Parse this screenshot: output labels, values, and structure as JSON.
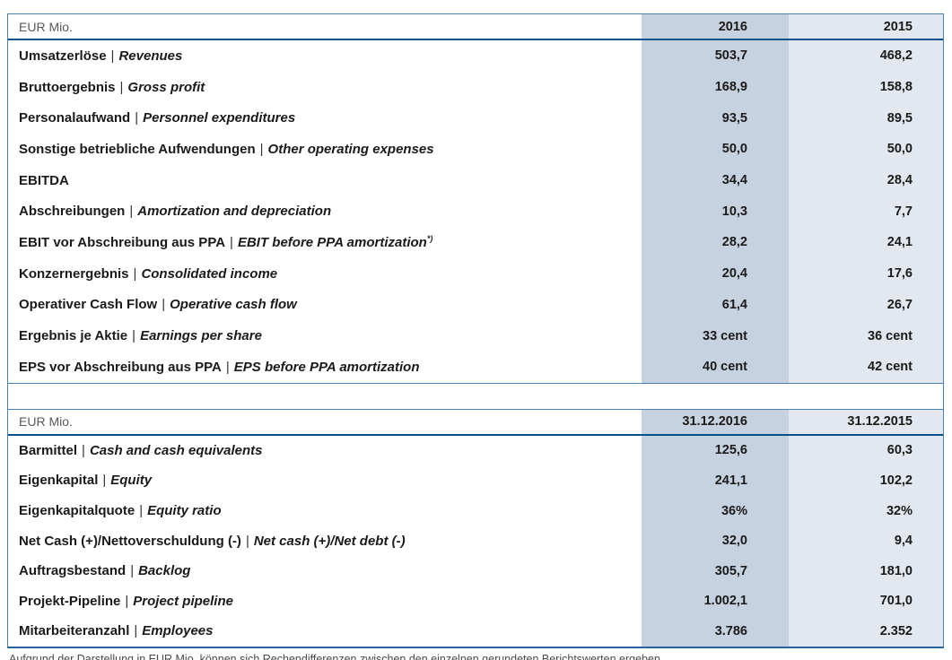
{
  "colors": {
    "frame_border": "#4a81ad",
    "header_rule": "#01518c",
    "bottom_border": "#26639c",
    "col_2016_bg": "#c7d2e0",
    "col_2015_bg": "#e3e7ef"
  },
  "table1": {
    "unit_label": "EUR Mio.",
    "col1_header": "2016",
    "col2_header": "2015",
    "separator": "|",
    "rows": [
      {
        "de": "Umsatzerlöse",
        "en": "Revenues",
        "v2016": "503,7",
        "v2015": "468,2"
      },
      {
        "de": "Bruttoergebnis",
        "en": "Gross profit",
        "v2016": "168,9",
        "v2015": "158,8"
      },
      {
        "de": "Personalaufwand",
        "en": "Personnel expenditures",
        "v2016": "93,5",
        "v2015": "89,5"
      },
      {
        "de": "Sonstige betriebliche Aufwendungen",
        "en": "Other operating expenses",
        "v2016": "50,0",
        "v2015": "50,0"
      },
      {
        "de": "EBITDA",
        "en": "",
        "v2016": "34,4",
        "v2015": "28,4"
      },
      {
        "de": "Abschreibungen",
        "en": "Amortization and depreciation",
        "v2016": "10,3",
        "v2015": "7,7"
      },
      {
        "de": "EBIT vor Abschreibung aus PPA",
        "en": "EBIT before PPA amortization",
        "sup": "*)",
        "v2016": "28,2",
        "v2015": "24,1"
      },
      {
        "de": "Konzernergebnis",
        "en": "Consolidated income",
        "v2016": "20,4",
        "v2015": "17,6"
      },
      {
        "de": "Operativer Cash Flow",
        "en": "Operative cash flow",
        "v2016": "61,4",
        "v2015": "26,7"
      },
      {
        "de": "Ergebnis je Aktie",
        "en": "Earnings per share",
        "v2016": "33 cent",
        "v2015": "36 cent"
      },
      {
        "de": "EPS vor Abschreibung aus PPA",
        "en": "EPS before PPA amortization",
        "v2016": "40 cent",
        "v2015": "42 cent"
      }
    ]
  },
  "table2": {
    "unit_label": "EUR Mio.",
    "col1_header": "31.12.2016",
    "col2_header": "31.12.2015",
    "separator": "|",
    "rows": [
      {
        "de": "Barmittel",
        "en": "Cash and cash equivalents",
        "v2016": "125,6",
        "v2015": "60,3"
      },
      {
        "de": "Eigenkapital",
        "en": "Equity",
        "v2016": "241,1",
        "v2015": "102,2"
      },
      {
        "de": "Eigenkapitalquote",
        "en": "Equity ratio",
        "v2016": "36%",
        "v2015": "32%"
      },
      {
        "de": "Net Cash (+)/Nettoverschuldung (-)",
        "en": "Net cash (+)/Net debt (-)",
        "v2016": "32,0",
        "v2015": "9,4"
      },
      {
        "de": "Auftragsbestand",
        "en": "Backlog",
        "v2016": "305,7",
        "v2015": "181,0"
      },
      {
        "de": "Projekt-Pipeline",
        "en": "Project pipeline",
        "v2016": "1.002,1",
        "v2015": "701,0"
      },
      {
        "de": "Mitarbeiteranzahl",
        "en": "Employees",
        "v2016": "3.786",
        "v2015": "2.352"
      }
    ]
  },
  "footnote": "Aufgrund der Darstellung in EUR Mio. können sich Rechendifferenzen zwischen den einzelnen gerundeten Berichtswerten ergeben."
}
